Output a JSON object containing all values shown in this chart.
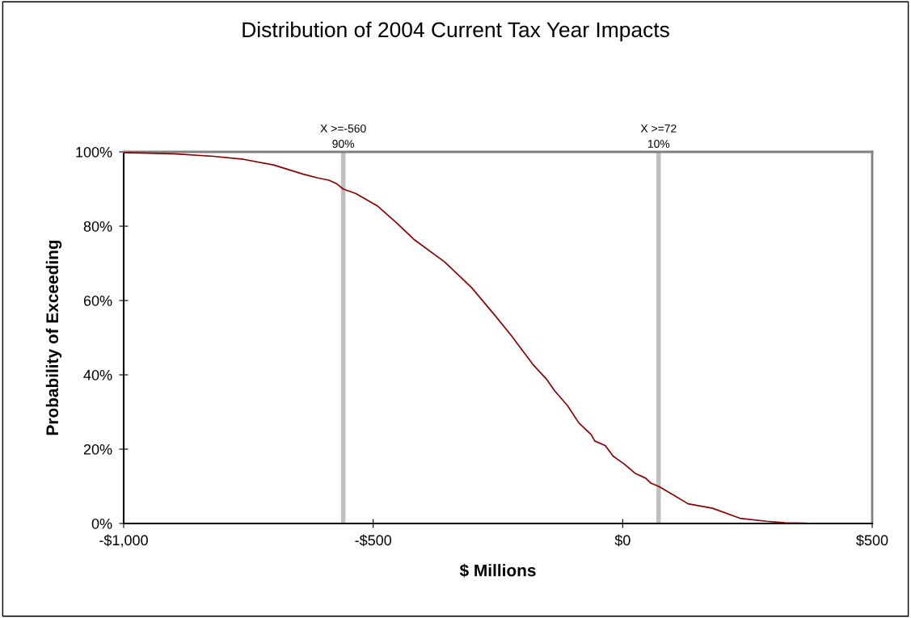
{
  "chart_data": {
    "type": "line",
    "title": "Distribution of 2004 Current Tax Year Impacts",
    "xlabel": "$ Millions",
    "ylabel": "Probability of Exceeding",
    "series": [
      {
        "color": "#8b0000",
        "x": [
          -1000,
          -900,
          -820,
          -760,
          -700,
          -640,
          -611,
          -589,
          -573,
          -560,
          -535,
          -492,
          -454,
          -417,
          -357,
          -303,
          -256,
          -224,
          -180,
          -153,
          -137,
          -111,
          -88,
          -63,
          -56,
          -35,
          -19,
          2,
          26,
          46,
          57,
          72,
          99,
          131,
          180,
          235,
          288,
          325,
          369,
          374
        ],
        "values": [
          99.8,
          99.5,
          98.8,
          98.0,
          96.5,
          94.0,
          93.0,
          92.4,
          91.4,
          90.0,
          88.8,
          85.5,
          81.0,
          76.3,
          70.4,
          63.5,
          56.0,
          50.7,
          42.8,
          38.9,
          35.8,
          31.8,
          27.1,
          23.9,
          22.2,
          21.0,
          18.1,
          16.1,
          13.4,
          12.2,
          10.8,
          10.0,
          7.9,
          5.3,
          4.1,
          1.4,
          0.6,
          0.2,
          0.1,
          0.0
        ]
      }
    ],
    "xlim": [
      -1000,
      500
    ],
    "xticks": [
      {
        "value": -1000,
        "label": "-$1,000"
      },
      {
        "value": -500,
        "label": "-$500"
      },
      {
        "value": 0,
        "label": "$0"
      },
      {
        "value": 500,
        "label": "$500"
      }
    ],
    "ylim": [
      0,
      100
    ],
    "yticks": [
      {
        "value": 0,
        "label": "0%"
      },
      {
        "value": 20,
        "label": "20%"
      },
      {
        "value": 40,
        "label": "40%"
      },
      {
        "value": 60,
        "label": "60%"
      },
      {
        "value": 80,
        "label": "80%"
      },
      {
        "value": 100,
        "label": "100%"
      }
    ],
    "ref_lines": [
      {
        "axis": "x",
        "value": -560,
        "label": "X >=-560\n90%",
        "color": "#c0c0c0"
      },
      {
        "axis": "x",
        "value": 72,
        "label": "X >=72\n10%",
        "color": "#c0c0c0"
      }
    ],
    "grid": false,
    "legend": false
  }
}
